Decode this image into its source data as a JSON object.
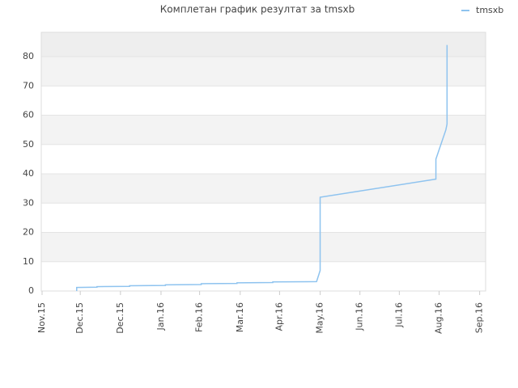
{
  "chart_data": {
    "type": "line",
    "title": "Комплетан график резултат за tmsxb",
    "series": [
      {
        "name": "tmsxb",
        "color": "#8ec3ef",
        "x": [
          0.87,
          0.87,
          1.38,
          1.38,
          2.2,
          2.2,
          3.1,
          3.1,
          4.0,
          4.0,
          4.9,
          4.9,
          5.8,
          5.8,
          6.9,
          6.99,
          6.99,
          9.9,
          9.9,
          10.15,
          10.18,
          10.18
        ],
        "values": [
          0,
          1.2,
          1.3,
          1.5,
          1.6,
          1.8,
          1.9,
          2.1,
          2.2,
          2.5,
          2.6,
          2.8,
          2.9,
          3.1,
          3.2,
          7,
          32,
          38.2,
          45,
          55,
          57,
          84
        ]
      }
    ],
    "xlim": [
      0,
      11.15
    ],
    "xticks": [
      {
        "value": 0,
        "label": "Nov.15"
      },
      {
        "value": 0.96,
        "label": "Dec.15"
      },
      {
        "value": 1.97,
        "label": "Dec.15"
      },
      {
        "value": 2.99,
        "label": "Jan.16"
      },
      {
        "value": 3.96,
        "label": "Feb.16"
      },
      {
        "value": 4.98,
        "label": "Mar.16"
      },
      {
        "value": 5.97,
        "label": "Apr.16"
      },
      {
        "value": 6.99,
        "label": "May.16"
      },
      {
        "value": 7.99,
        "label": "Jun.16"
      },
      {
        "value": 8.98,
        "label": "Jul.16"
      },
      {
        "value": 9.98,
        "label": "Aug.16"
      },
      {
        "value": 11.0,
        "label": "Sep.16"
      }
    ],
    "ylim": [
      0,
      88.3
    ],
    "yticks": [
      0,
      10,
      20,
      30,
      40,
      50,
      60,
      70,
      80
    ],
    "grid": true,
    "legend": "top-right"
  }
}
